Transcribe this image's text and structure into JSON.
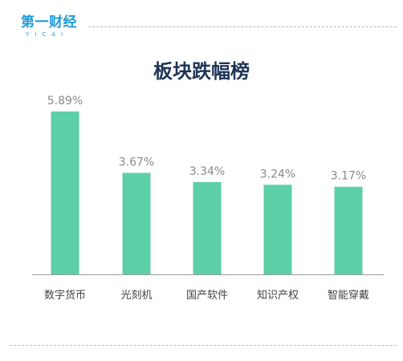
{
  "logo": {
    "text": "第一财经",
    "sub": "YICAI"
  },
  "colors": {
    "bar": "#5ccfa7",
    "value": "#8a8a8a",
    "category": "#444444",
    "axis": "#9a9a9a",
    "title": "#1f3556",
    "logo": "#1e9bd7"
  },
  "chart_data": {
    "type": "bar",
    "title": "板块跌幅榜",
    "categories": [
      "数字货币",
      "光刻机",
      "国产软件",
      "知识产权",
      "智能穿戴"
    ],
    "values": [
      5.89,
      3.67,
      3.34,
      3.24,
      3.17
    ],
    "value_labels": [
      "5.89%",
      "3.67%",
      "3.34%",
      "3.24%",
      "3.17%"
    ],
    "unit": "%",
    "ylim": [
      0,
      5.89
    ],
    "grid": false,
    "legend": "none"
  }
}
